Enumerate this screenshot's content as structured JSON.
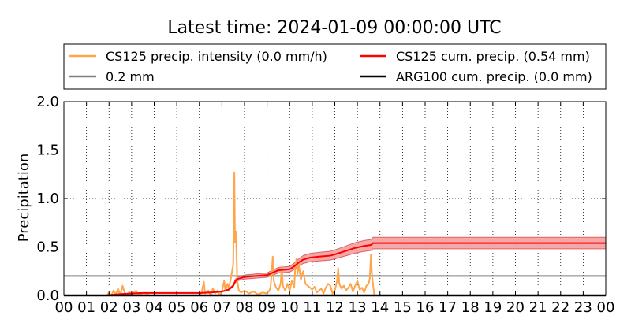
{
  "chart_data": {
    "type": "line",
    "title": "Latest time: 2024-01-09 00:00:00 UTC",
    "xlabel": "",
    "ylabel": "Precipitation",
    "xlim": [
      0,
      24
    ],
    "ylim": [
      0,
      2.0
    ],
    "x_tick_labels": [
      "00",
      "01",
      "02",
      "03",
      "04",
      "05",
      "06",
      "07",
      "08",
      "09",
      "10",
      "11",
      "12",
      "13",
      "14",
      "15",
      "16",
      "17",
      "18",
      "19",
      "20",
      "21",
      "22",
      "23",
      "00"
    ],
    "y_ticks": [
      0.0,
      0.5,
      1.0,
      1.5,
      2.0
    ],
    "y_tick_labels": [
      "0.0",
      "0.5",
      "1.0",
      "1.5",
      "2.0"
    ],
    "grid": true,
    "legend_placement": "top",
    "legend": [
      {
        "label": "CS125 precip. intensity (0.0 mm/h)",
        "color": "#ffa64d",
        "series": "intensity"
      },
      {
        "label": "CS125 cum. precip. (0.54 mm)",
        "color": "#ff0000",
        "series": "cumulative"
      },
      {
        "label": "0.2 mm",
        "color": "#808080",
        "series": "threshold"
      },
      {
        "label": "ARG100 cum. precip. (0.0 mm)",
        "color": "#000000",
        "series": "arg100"
      }
    ],
    "series": [
      {
        "name": "CS125 precip. intensity (0.0 mm/h)",
        "color": "#ffa64d",
        "points": [
          [
            0.0,
            0
          ],
          [
            1.9,
            0
          ],
          [
            2.0,
            0.03
          ],
          [
            2.1,
            0
          ],
          [
            2.2,
            0.05
          ],
          [
            2.3,
            0.01
          ],
          [
            2.4,
            0.07
          ],
          [
            2.5,
            0
          ],
          [
            2.6,
            0.1
          ],
          [
            2.7,
            0.02
          ],
          [
            2.8,
            0
          ],
          [
            2.9,
            0.04
          ],
          [
            3.0,
            0
          ],
          [
            3.1,
            0.03
          ],
          [
            3.2,
            0.05
          ],
          [
            3.3,
            0
          ],
          [
            3.4,
            0.02
          ],
          [
            3.5,
            0
          ],
          [
            3.7,
            0.01
          ],
          [
            3.8,
            0
          ],
          [
            6.0,
            0
          ],
          [
            6.1,
            0.03
          ],
          [
            6.2,
            0.14
          ],
          [
            6.25,
            0.02
          ],
          [
            6.4,
            0.05
          ],
          [
            6.5,
            0
          ],
          [
            6.6,
            0.07
          ],
          [
            6.7,
            0.02
          ],
          [
            6.8,
            0.05
          ],
          [
            6.9,
            0
          ],
          [
            7.0,
            0.04
          ],
          [
            7.1,
            0.15
          ],
          [
            7.15,
            0.05
          ],
          [
            7.25,
            0.12
          ],
          [
            7.3,
            0.07
          ],
          [
            7.4,
            0.18
          ],
          [
            7.45,
            0.25
          ],
          [
            7.5,
            0.32
          ],
          [
            7.55,
            1.27
          ],
          [
            7.58,
            0.55
          ],
          [
            7.62,
            0.66
          ],
          [
            7.68,
            0.15
          ],
          [
            7.75,
            0.05
          ],
          [
            7.85,
            0.03
          ],
          [
            8.0,
            0.05
          ],
          [
            8.2,
            0.02
          ],
          [
            8.4,
            0.04
          ],
          [
            8.6,
            0.01
          ],
          [
            8.8,
            0.03
          ],
          [
            9.0,
            0.02
          ],
          [
            9.1,
            0.05
          ],
          [
            9.15,
            0.08
          ],
          [
            9.2,
            0.22
          ],
          [
            9.25,
            0.4
          ],
          [
            9.3,
            0.15
          ],
          [
            9.4,
            0.08
          ],
          [
            9.5,
            0.05
          ],
          [
            9.6,
            0.12
          ],
          [
            9.65,
            0.3
          ],
          [
            9.7,
            0.1
          ],
          [
            9.8,
            0.05
          ],
          [
            9.9,
            0.12
          ],
          [
            10.0,
            0.05
          ],
          [
            10.1,
            0.15
          ],
          [
            10.2,
            0.08
          ],
          [
            10.25,
            0.3
          ],
          [
            10.3,
            0.38
          ],
          [
            10.35,
            0.22
          ],
          [
            10.4,
            0.32
          ],
          [
            10.5,
            0.16
          ],
          [
            10.55,
            0.22
          ],
          [
            10.6,
            0.25
          ],
          [
            10.7,
            0.12
          ],
          [
            10.8,
            0.1
          ],
          [
            10.9,
            0.08
          ],
          [
            11.0,
            0.06
          ],
          [
            11.1,
            0.09
          ],
          [
            11.2,
            0.03
          ],
          [
            11.3,
            0.05
          ],
          [
            11.4,
            0.07
          ],
          [
            11.5,
            0.02
          ],
          [
            11.6,
            0.08
          ],
          [
            11.7,
            0.12
          ],
          [
            11.8,
            0.1
          ],
          [
            11.9,
            0.02
          ],
          [
            12.0,
            0.05
          ],
          [
            12.1,
            0.15
          ],
          [
            12.15,
            0.28
          ],
          [
            12.2,
            0.12
          ],
          [
            12.3,
            0.07
          ],
          [
            12.4,
            0.1
          ],
          [
            12.5,
            0.05
          ],
          [
            12.6,
            0.08
          ],
          [
            12.7,
            0.12
          ],
          [
            12.8,
            0.04
          ],
          [
            12.9,
            0.1
          ],
          [
            13.0,
            0.15
          ],
          [
            13.1,
            0.06
          ],
          [
            13.2,
            0.08
          ],
          [
            13.3,
            0.03
          ],
          [
            13.4,
            0.1
          ],
          [
            13.5,
            0.12
          ],
          [
            13.55,
            0.18
          ],
          [
            13.6,
            0.42
          ],
          [
            13.65,
            0.2
          ],
          [
            13.7,
            0.1
          ],
          [
            13.75,
            0
          ],
          [
            24.0,
            0
          ]
        ]
      },
      {
        "name": "CS125 cum. precip. (0.54 mm)",
        "color": "#ff0000",
        "band_color": "#f4a3a3",
        "band_fraction": 0.11,
        "points": [
          [
            0,
            0
          ],
          [
            1.9,
            0
          ],
          [
            2.3,
            0.01
          ],
          [
            2.6,
            0.015
          ],
          [
            3.0,
            0.02
          ],
          [
            3.5,
            0.025
          ],
          [
            4.0,
            0.025
          ],
          [
            6.0,
            0.025
          ],
          [
            6.5,
            0.03
          ],
          [
            7.0,
            0.04
          ],
          [
            7.3,
            0.06
          ],
          [
            7.5,
            0.1
          ],
          [
            7.6,
            0.15
          ],
          [
            7.7,
            0.17
          ],
          [
            8.0,
            0.19
          ],
          [
            8.5,
            0.2
          ],
          [
            9.0,
            0.21
          ],
          [
            9.3,
            0.24
          ],
          [
            9.5,
            0.26
          ],
          [
            10.0,
            0.27
          ],
          [
            10.2,
            0.3
          ],
          [
            10.4,
            0.34
          ],
          [
            10.6,
            0.37
          ],
          [
            10.9,
            0.39
          ],
          [
            11.3,
            0.4
          ],
          [
            11.8,
            0.41
          ],
          [
            12.1,
            0.43
          ],
          [
            12.5,
            0.46
          ],
          [
            12.9,
            0.49
          ],
          [
            13.3,
            0.51
          ],
          [
            13.6,
            0.52
          ],
          [
            13.7,
            0.54
          ],
          [
            24,
            0.54
          ]
        ]
      },
      {
        "name": "0.2 mm",
        "color": "#808080",
        "points": [
          [
            0,
            0.2
          ],
          [
            24,
            0.2
          ]
        ]
      },
      {
        "name": "ARG100 cum. precip. (0.0 mm)",
        "color": "#000000",
        "points": [
          [
            0,
            0
          ],
          [
            24,
            0
          ]
        ]
      }
    ]
  }
}
